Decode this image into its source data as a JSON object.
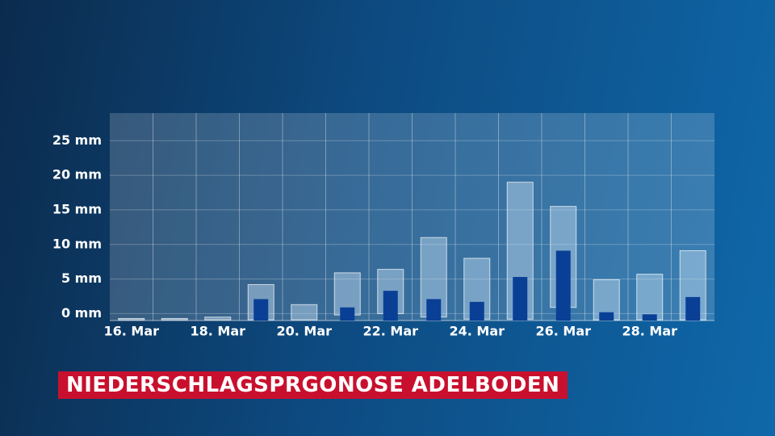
{
  "chart_data": {
    "type": "range_bar",
    "title": "NIEDERSCHLAGSPRGONOSE ADELBODEN",
    "categories": [
      "16. Mar",
      null,
      "18. Mar",
      null,
      "20. Mar",
      null,
      "22. Mar",
      null,
      "24. Mar",
      null,
      "26. Mar",
      null,
      "28. Mar",
      null
    ],
    "range_low": [
      -0.9,
      -0.9,
      -0.9,
      -0.9,
      -0.9,
      -0.2,
      0,
      -0.5,
      -0.8,
      -0.8,
      0.9,
      -0.9,
      -0.9,
      -0.9
    ],
    "range_high": [
      -0.7,
      -0.7,
      -0.5,
      4.2,
      1.3,
      5.9,
      6.4,
      11,
      8,
      19,
      15.5,
      4.9,
      5.7,
      9.1
    ],
    "range_color": "rgba(200,225,245,0.45)",
    "values": [
      null,
      null,
      null,
      2.1,
      null,
      0.9,
      3.3,
      2.1,
      1.7,
      5.3,
      9.1,
      0.2,
      -0.1,
      2.4
    ],
    "color": "#0a3f96",
    "ylim": [
      -1,
      29
    ],
    "yticks": [
      {
        "value": 0,
        "label": "0 mm"
      },
      {
        "value": 5,
        "label": "5 mm"
      },
      {
        "value": 10,
        "label": "10 mm"
      },
      {
        "value": 15,
        "label": "15 mm"
      },
      {
        "value": 20,
        "label": "20 mm"
      },
      {
        "value": 25,
        "label": "25 mm"
      }
    ],
    "grid": true
  }
}
